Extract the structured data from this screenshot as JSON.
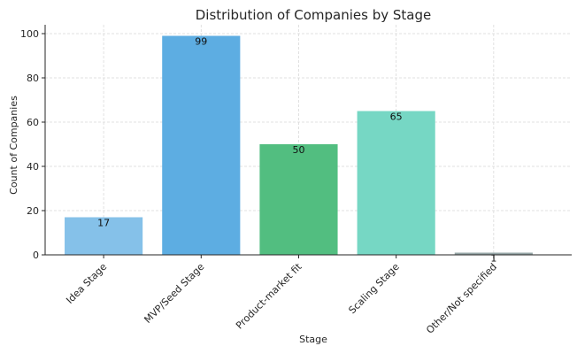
{
  "chart_data": {
    "type": "bar",
    "title": "Distribution of Companies by Stage",
    "xlabel": "Stage",
    "ylabel": "Count of Companies",
    "categories": [
      "Idea Stage",
      "MVP/Seed Stage",
      "Product-market fit",
      "Scaling Stage",
      "Other/Not specified"
    ],
    "values": [
      17,
      99,
      50,
      65,
      1
    ],
    "data_labels": [
      "17",
      "99",
      "50",
      "65",
      "1"
    ],
    "colors": [
      "#85c1e9",
      "#5dade2",
      "#52be80",
      "#76d7c4",
      "#95a5a6"
    ],
    "ylim": [
      0,
      104
    ],
    "yticks": [
      0,
      20,
      40,
      60,
      80,
      100
    ],
    "ytick_labels": [
      "0",
      "20",
      "40",
      "60",
      "80",
      "100"
    ],
    "grid": true,
    "legend": "none"
  }
}
